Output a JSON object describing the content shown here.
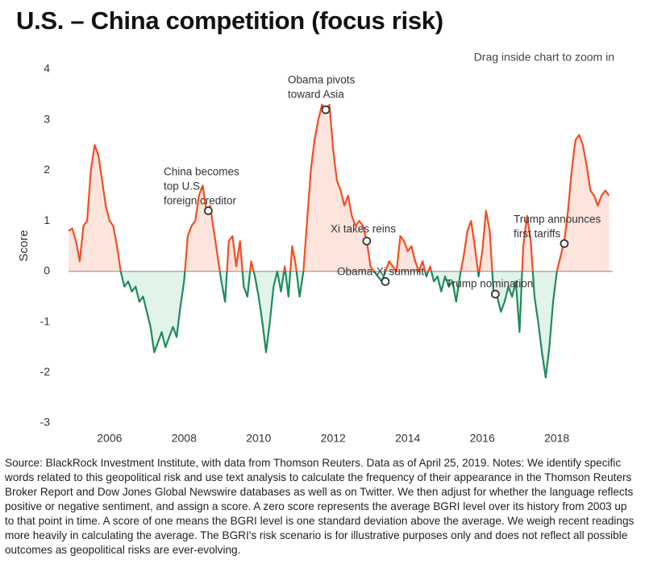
{
  "chart_data": {
    "type": "line",
    "title": "U.S. – China competition (focus risk)",
    "hint": "Drag inside chart to zoom in",
    "y_label": "Score",
    "note": "Source: BlackRock Investment Institute, with data from Thomson Reuters. Data as of April 25, 2019. Notes: We identify specific words related to this geopolitical risk and use text analysis to calculate the frequency of their appearance in the Thomson Reuters Broker Report and Dow Jones Global Newswire databases as well as on Twitter. We then adjust for whether the language reflects positive or negative sentiment, and assign a score. A zero score represents the average BGRI level over its history from 2003 up to that point in time. A score of one means the BGRI level is one standard deviation above the average. We weigh recent readings more heavily in calculating the average. The BGRI's risk scenario is for illustrative purposes only and does not reflect all possible outcomes as geopolitical risks are ever-evolving.",
    "xlim": [
      2004.9,
      2019.5
    ],
    "xticks": [
      2006,
      2008,
      2010,
      2012,
      2014,
      2016,
      2018
    ],
    "ylim": [
      -3,
      4
    ],
    "yticks": [
      -3,
      -2,
      -1,
      0,
      1,
      2,
      3,
      4
    ],
    "positive_color": "#f04e23",
    "negative_color": "#1f8a5b",
    "positive_fill": "#fde4dc",
    "negative_fill": "#e2f3ea",
    "x": [
      2004.9,
      2005.0,
      2005.1,
      2005.2,
      2005.3,
      2005.4,
      2005.5,
      2005.6,
      2005.7,
      2005.8,
      2005.9,
      2006.0,
      2006.1,
      2006.2,
      2006.3,
      2006.4,
      2006.5,
      2006.6,
      2006.7,
      2006.8,
      2006.9,
      2007.0,
      2007.1,
      2007.2,
      2007.3,
      2007.4,
      2007.5,
      2007.6,
      2007.7,
      2007.8,
      2007.9,
      2008.0,
      2008.1,
      2008.2,
      2008.3,
      2008.4,
      2008.5,
      2008.6,
      2008.7,
      2008.8,
      2008.9,
      2009.0,
      2009.1,
      2009.2,
      2009.3,
      2009.4,
      2009.5,
      2009.6,
      2009.7,
      2009.8,
      2009.9,
      2010.0,
      2010.1,
      2010.2,
      2010.3,
      2010.4,
      2010.5,
      2010.6,
      2010.7,
      2010.8,
      2010.9,
      2011.0,
      2011.1,
      2011.2,
      2011.3,
      2011.4,
      2011.5,
      2011.6,
      2011.7,
      2011.8,
      2011.9,
      2012.0,
      2012.1,
      2012.2,
      2012.3,
      2012.4,
      2012.5,
      2012.6,
      2012.7,
      2012.8,
      2012.9,
      2013.0,
      2013.1,
      2013.2,
      2013.3,
      2013.4,
      2013.5,
      2013.6,
      2013.7,
      2013.8,
      2013.9,
      2014.0,
      2014.1,
      2014.2,
      2014.3,
      2014.4,
      2014.5,
      2014.6,
      2014.7,
      2014.8,
      2014.9,
      2015.0,
      2015.1,
      2015.2,
      2015.3,
      2015.4,
      2015.5,
      2015.6,
      2015.7,
      2015.8,
      2015.9,
      2016.0,
      2016.1,
      2016.2,
      2016.3,
      2016.4,
      2016.5,
      2016.6,
      2016.7,
      2016.8,
      2016.9,
      2017.0,
      2017.1,
      2017.2,
      2017.3,
      2017.4,
      2017.5,
      2017.6,
      2017.7,
      2017.8,
      2017.9,
      2018.0,
      2018.1,
      2018.2,
      2018.3,
      2018.4,
      2018.5,
      2018.6,
      2018.7,
      2018.8,
      2018.9,
      2019.0,
      2019.1,
      2019.2,
      2019.3,
      2019.4
    ],
    "values": [
      0.8,
      0.85,
      0.6,
      0.2,
      0.9,
      1.0,
      2.0,
      2.5,
      2.3,
      1.8,
      1.3,
      1.0,
      0.9,
      0.5,
      0.0,
      -0.3,
      -0.2,
      -0.4,
      -0.3,
      -0.6,
      -0.5,
      -0.8,
      -1.1,
      -1.6,
      -1.4,
      -1.2,
      -1.5,
      -1.3,
      -1.1,
      -1.3,
      -0.7,
      -0.2,
      0.7,
      0.9,
      1.0,
      1.5,
      1.7,
      1.2,
      1.3,
      0.8,
      0.3,
      -0.2,
      -0.6,
      0.6,
      0.7,
      0.1,
      0.6,
      -0.3,
      -0.5,
      0.2,
      -0.1,
      -0.5,
      -1.0,
      -1.6,
      -1.0,
      -0.3,
      0.0,
      -0.4,
      0.1,
      -0.5,
      0.5,
      0.1,
      -0.5,
      0.0,
      1.0,
      2.0,
      2.6,
      3.0,
      3.3,
      3.2,
      3.3,
      2.4,
      1.8,
      1.6,
      1.3,
      1.5,
      1.1,
      0.9,
      1.0,
      0.9,
      0.6,
      0.1,
      0.0,
      -0.1,
      -0.2,
      0.0,
      0.2,
      0.1,
      0.0,
      0.7,
      0.6,
      0.4,
      0.5,
      0.2,
      0.0,
      0.2,
      -0.1,
      0.1,
      -0.2,
      -0.1,
      -0.4,
      -0.1,
      -0.3,
      -0.2,
      -0.6,
      -0.1,
      0.3,
      0.8,
      1.0,
      0.5,
      -0.1,
      0.4,
      1.2,
      0.8,
      -0.4,
      -0.5,
      -0.8,
      -0.6,
      -0.3,
      -0.5,
      -0.2,
      -1.2,
      0.5,
      1.1,
      0.6,
      -0.5,
      -1.0,
      -1.6,
      -2.1,
      -1.5,
      -0.6,
      0.0,
      0.3,
      0.6,
      1.2,
      2.0,
      2.6,
      2.7,
      2.5,
      2.1,
      1.6,
      1.5,
      1.3,
      1.5,
      1.6,
      1.5
    ],
    "annotations": [
      {
        "lines": [
          "China becomes",
          "top U.S.",
          "foreign creditor"
        ],
        "x": 2008.65,
        "y": 1.2
      },
      {
        "lines": [
          "Obama pivots",
          "toward Asia"
        ],
        "x": 2011.8,
        "y": 3.2
      },
      {
        "lines": [
          "Xi takes reins"
        ],
        "x": 2012.9,
        "y": 0.6
      },
      {
        "lines": [
          "Obama-Xi summit"
        ],
        "x": 2013.4,
        "y": -0.2
      },
      {
        "lines": [
          "Trump nomination"
        ],
        "x": 2016.35,
        "y": -0.45
      },
      {
        "lines": [
          "Trump announces",
          "first tariffs"
        ],
        "x": 2018.2,
        "y": 0.55
      }
    ]
  }
}
